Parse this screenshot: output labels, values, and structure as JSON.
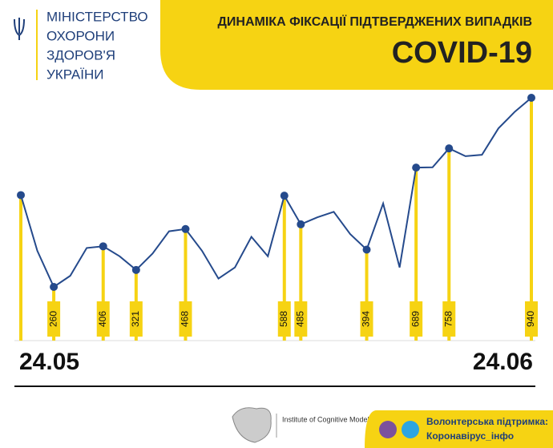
{
  "header": {
    "ministry": [
      "МІНІСТЕРСТВО",
      "ОХОРОНИ",
      "ЗДОРОВ'Я",
      "УКРАЇНИ"
    ]
  },
  "chart_data": {
    "type": "line",
    "title": "ДИНАМІКА ФІКСАЦІЇ ПІДТВЕРДЖЕНИХ ВИПАДКІВ",
    "subtitle": "COVID-19",
    "categories": [
      "24.05",
      null,
      null,
      null,
      null,
      null,
      null,
      null,
      null,
      null,
      null,
      null,
      null,
      null,
      null,
      null,
      null,
      null,
      null,
      null,
      null,
      null,
      null,
      null,
      null,
      null,
      null,
      null,
      null,
      null,
      null,
      "24.06"
    ],
    "values": [
      590,
      390,
      260,
      300,
      400,
      406,
      370,
      321,
      380,
      460,
      468,
      390,
      290,
      330,
      440,
      370,
      588,
      485,
      510,
      530,
      450,
      394,
      560,
      330,
      689,
      690,
      758,
      730,
      735,
      830,
      890,
      940
    ],
    "value_labels": [
      null,
      null,
      "260",
      null,
      null,
      "406",
      null,
      "321",
      null,
      null,
      "468",
      null,
      null,
      null,
      null,
      null,
      "588",
      "485",
      null,
      null,
      null,
      "394",
      null,
      null,
      "689",
      null,
      "758",
      null,
      null,
      null,
      null,
      "940"
    ],
    "color": "#254a8c",
    "accent": "#f6d313"
  },
  "footer": {
    "institute": "Institute of Cognitive Modeling",
    "support": "Волонтерська підтримка:",
    "site": "Коронавірус_інфо"
  }
}
